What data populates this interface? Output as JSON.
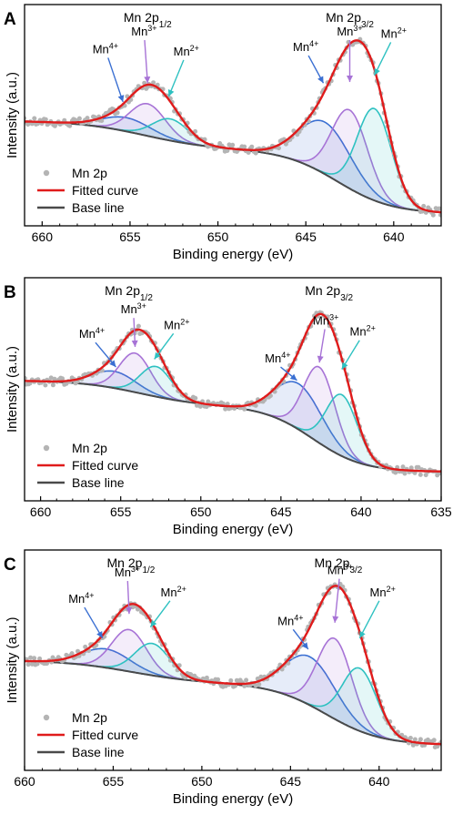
{
  "colors": {
    "data_points": "#b4b4b4",
    "fitted": "#e01b1b",
    "baseline": "#4a4a4a",
    "mn4": "#3a6fd2",
    "mn3": "#a773d6",
    "mn2": "#2ec1c1"
  },
  "chart_data": [
    {
      "type": "line",
      "panel": "A",
      "xlabel": "Binding energy (eV)",
      "ylabel": "Intensity (a.u.)",
      "x_reversed": true,
      "xlim": [
        661,
        637.3
      ],
      "ylim": [
        0,
        10
      ],
      "xticks": [
        660,
        655,
        650,
        645,
        640
      ],
      "xtick_labels": [
        "660",
        "655",
        "650",
        "645",
        "640"
      ],
      "legend": {
        "position": "bottom-left",
        "entries": [
          "Mn 2p",
          "Fitted curve",
          "Base line"
        ]
      },
      "peak_labels": [
        {
          "main": "Mn 2p",
          "sub": "1/2",
          "x": 654.0,
          "y": 10.6
        },
        {
          "main": "Mn 2p",
          "sub": "3/2",
          "x": 642.5,
          "y": 10.6
        }
      ],
      "baseline": {
        "left": 4.75,
        "mid": 3.45,
        "right": 0.55,
        "step1_center": 654.2,
        "step1_width": 1.9,
        "step2_center": 643.2,
        "step2_width": 1.55
      },
      "components": [
        {
          "name": "Mn4+",
          "series": "mn4",
          "center": 655.2,
          "height": 0.62,
          "fwhm": 3.3
        },
        {
          "name": "Mn3+",
          "series": "mn3",
          "center": 654.0,
          "height": 1.45,
          "fwhm": 2.4
        },
        {
          "name": "Mn2+",
          "series": "mn2",
          "center": 652.7,
          "height": 0.98,
          "fwhm": 2.4
        },
        {
          "name": "Mn4+",
          "series": "mn4",
          "center": 643.9,
          "height": 2.35,
          "fwhm": 3.5
        },
        {
          "name": "Mn3+",
          "series": "mn3",
          "center": 642.5,
          "height": 3.55,
          "fwhm": 2.4
        },
        {
          "name": "Mn2+",
          "series": "mn2",
          "center": 641.1,
          "height": 4.15,
          "fwhm": 2.3
        }
      ],
      "annotations": [
        {
          "ion": "Mn",
          "sup": "4+",
          "color_key": "mn4",
          "text_x": 656.4,
          "text_y": 7.8,
          "tip_x": 655.4,
          "tip_y": 5.6
        },
        {
          "ion": "Mn",
          "sup": "3+",
          "color_key": "mn3",
          "text_x": 654.2,
          "text_y": 8.6,
          "tip_x": 654.0,
          "tip_y": 6.45
        },
        {
          "ion": "Mn",
          "sup": "2+",
          "color_key": "mn2",
          "text_x": 651.8,
          "text_y": 7.7,
          "tip_x": 652.8,
          "tip_y": 5.85
        },
        {
          "ion": "Mn",
          "sup": "4+",
          "color_key": "mn4",
          "text_x": 645.0,
          "text_y": 7.9,
          "tip_x": 644.0,
          "tip_y": 6.45
        },
        {
          "ion": "Mn",
          "sup": "3+",
          "color_key": "mn3",
          "text_x": 642.5,
          "text_y": 8.6,
          "tip_x": 642.5,
          "tip_y": 6.5
        },
        {
          "ion": "Mn",
          "sup": "2+",
          "color_key": "mn2",
          "text_x": 640.0,
          "text_y": 8.5,
          "tip_x": 641.1,
          "tip_y": 6.8
        }
      ]
    },
    {
      "type": "line",
      "panel": "B",
      "xlabel": "Binding energy (eV)",
      "ylabel": "Intensity (a.u.)",
      "x_reversed": true,
      "xlim": [
        661,
        635
      ],
      "ylim": [
        0,
        10
      ],
      "xticks": [
        660,
        655,
        650,
        645,
        640,
        635
      ],
      "xtick_labels": [
        "660",
        "655",
        "650",
        "645",
        "640",
        "635"
      ],
      "legend": {
        "position": "bottom-left",
        "entries": [
          "Mn 2p",
          "Fitted curve",
          "Base line"
        ]
      },
      "peak_labels": [
        {
          "main": "Mn 2p",
          "sub": "1/2",
          "x": 654.5,
          "y": 10.6
        },
        {
          "main": "Mn 2p",
          "sub": "3/2",
          "x": 642.0,
          "y": 10.6
        }
      ],
      "baseline": {
        "left": 5.4,
        "mid": 4.25,
        "right": 1.3,
        "step1_center": 653.8,
        "step1_width": 1.9,
        "step2_center": 643.0,
        "step2_width": 1.55
      },
      "components": [
        {
          "name": "Mn4+",
          "series": "mn4",
          "center": 655.4,
          "height": 0.75,
          "fwhm": 3.2
        },
        {
          "name": "Mn3+",
          "series": "mn3",
          "center": 654.1,
          "height": 1.75,
          "fwhm": 2.3
        },
        {
          "name": "Mn2+",
          "series": "mn2",
          "center": 652.8,
          "height": 1.35,
          "fwhm": 2.3
        },
        {
          "name": "Mn4+",
          "series": "mn4",
          "center": 643.9,
          "height": 2.05,
          "fwhm": 3.5
        },
        {
          "name": "Mn3+",
          "series": "mn3",
          "center": 642.6,
          "height": 3.4,
          "fwhm": 2.3
        },
        {
          "name": "Mn2+",
          "series": "mn2",
          "center": 641.2,
          "height": 2.75,
          "fwhm": 2.3
        }
      ],
      "annotations": [
        {
          "ion": "Mn",
          "sup": "4+",
          "color_key": "mn4",
          "text_x": 656.8,
          "text_y": 7.3,
          "tip_x": 655.3,
          "tip_y": 6.0
        },
        {
          "ion": "Mn",
          "sup": "3+",
          "color_key": "mn3",
          "text_x": 654.2,
          "text_y": 8.4,
          "tip_x": 654.1,
          "tip_y": 6.9
        },
        {
          "ion": "Mn",
          "sup": "2+",
          "color_key": "mn2",
          "text_x": 651.5,
          "text_y": 7.7,
          "tip_x": 652.9,
          "tip_y": 6.35
        },
        {
          "ion": "Mn",
          "sup": "4+",
          "color_key": "mn4",
          "text_x": 645.2,
          "text_y": 6.2,
          "tip_x": 644.0,
          "tip_y": 5.4
        },
        {
          "ion": "Mn",
          "sup": "3+",
          "color_key": "mn3",
          "text_x": 642.2,
          "text_y": 7.9,
          "tip_x": 642.6,
          "tip_y": 6.2
        },
        {
          "ion": "Mn",
          "sup": "2+",
          "color_key": "mn2",
          "text_x": 639.9,
          "text_y": 7.4,
          "tip_x": 641.2,
          "tip_y": 5.9
        }
      ]
    },
    {
      "type": "line",
      "panel": "C",
      "xlabel": "Binding energy (eV)",
      "ylabel": "Intensity (a.u.)",
      "x_reversed": true,
      "xlim": [
        660,
        636.5
      ],
      "ylim": [
        0,
        10
      ],
      "xticks": [
        660,
        655,
        650,
        645,
        640
      ],
      "xtick_labels": [
        "660",
        "655",
        "650",
        "645",
        "640"
      ],
      "legend": {
        "position": "bottom-left",
        "entries": [
          "Mn 2p",
          "Fitted curve",
          "Base line"
        ]
      },
      "peak_labels": [
        {
          "main": "Mn 2p",
          "sub": "1/2",
          "x": 654.0,
          "y": 10.6
        },
        {
          "main": "Mn 2p",
          "sub": "3/2",
          "x": 642.3,
          "y": 10.6
        }
      ],
      "baseline": {
        "left": 5.0,
        "mid": 3.95,
        "right": 1.15,
        "step1_center": 654.0,
        "step1_width": 1.9,
        "step2_center": 643.0,
        "step2_width": 1.55
      },
      "components": [
        {
          "name": "Mn4+",
          "series": "mn4",
          "center": 655.4,
          "height": 0.85,
          "fwhm": 3.2
        },
        {
          "name": "Mn3+",
          "series": "mn3",
          "center": 654.1,
          "height": 1.9,
          "fwhm": 2.3
        },
        {
          "name": "Mn2+",
          "series": "mn2",
          "center": 652.8,
          "height": 1.45,
          "fwhm": 2.3
        },
        {
          "name": "Mn4+",
          "series": "mn4",
          "center": 643.9,
          "height": 2.2,
          "fwhm": 3.4
        },
        {
          "name": "Mn3+",
          "series": "mn3",
          "center": 642.5,
          "height": 3.65,
          "fwhm": 2.3
        },
        {
          "name": "Mn2+",
          "series": "mn2",
          "center": 641.1,
          "height": 2.85,
          "fwhm": 2.3
        }
      ],
      "annotations": [
        {
          "ion": "Mn",
          "sup": "4+",
          "color_key": "mn4",
          "text_x": 656.8,
          "text_y": 7.6,
          "tip_x": 655.6,
          "tip_y": 6.0
        },
        {
          "ion": "Mn",
          "sup": "3+",
          "color_key": "mn3",
          "text_x": 654.2,
          "text_y": 8.8,
          "tip_x": 654.1,
          "tip_y": 7.1
        },
        {
          "ion": "Mn",
          "sup": "2+",
          "color_key": "mn2",
          "text_x": 651.6,
          "text_y": 7.9,
          "tip_x": 652.9,
          "tip_y": 6.5
        },
        {
          "ion": "Mn",
          "sup": "4+",
          "color_key": "mn4",
          "text_x": 645.0,
          "text_y": 6.6,
          "tip_x": 644.0,
          "tip_y": 5.5
        },
        {
          "ion": "Mn",
          "sup": "3+",
          "color_key": "mn3",
          "text_x": 642.2,
          "text_y": 8.9,
          "tip_x": 642.5,
          "tip_y": 6.7
        },
        {
          "ion": "Mn",
          "sup": "2+",
          "color_key": "mn2",
          "text_x": 639.8,
          "text_y": 7.9,
          "tip_x": 641.1,
          "tip_y": 6.0
        }
      ]
    }
  ]
}
